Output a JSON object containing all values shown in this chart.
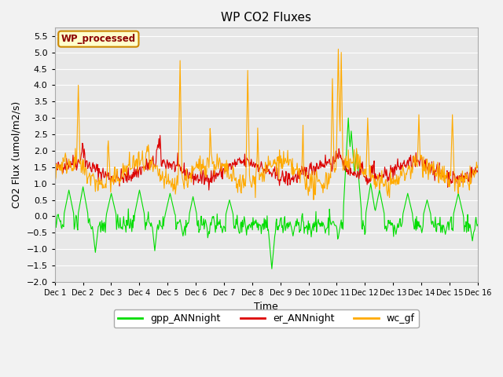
{
  "title": "WP CO2 Fluxes",
  "xlabel": "Time",
  "ylabel_text": "CO2 Flux (umol/m2/s)",
  "ylim": [
    -2.0,
    5.75
  ],
  "yticks": [
    -2.0,
    -1.5,
    -1.0,
    -0.5,
    0.0,
    0.5,
    1.0,
    1.5,
    2.0,
    2.5,
    3.0,
    3.5,
    4.0,
    4.5,
    5.0,
    5.5
  ],
  "n_days": 15,
  "pts_per_day": 48,
  "colors": {
    "gpp": "#00dd00",
    "er": "#dd0000",
    "wc": "#ffaa00"
  },
  "legend_labels": [
    "gpp_ANNnight",
    "er_ANNnight",
    "wc_gf"
  ],
  "wp_label": "WP_processed",
  "plot_bg": "#e8e8e8",
  "fig_bg": "#f2f2f2",
  "grid_color": "#ffffff",
  "title_fontsize": 11,
  "axis_fontsize": 9,
  "tick_fontsize": 8,
  "xtick_fontsize": 7,
  "legend_fontsize": 9,
  "seed": 42
}
